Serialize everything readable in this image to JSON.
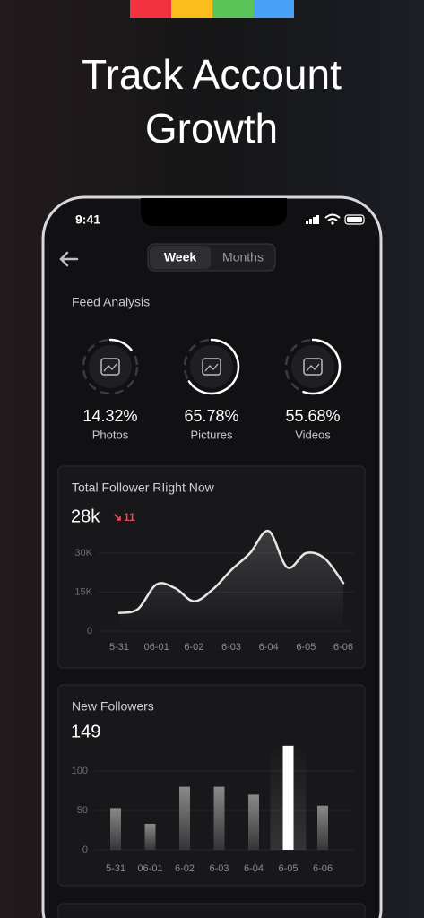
{
  "header": {
    "title_lines": [
      "Track Account",
      "Growth"
    ]
  },
  "status": {
    "time": "9:41"
  },
  "tabs": [
    "Week",
    "Months"
  ],
  "feed": {
    "title": "Feed Analysis",
    "labels": [
      "Photos",
      "Pictures",
      "Videos"
    ],
    "values": [
      14.32,
      65.78,
      55.68
    ],
    "value_labels": [
      "14.32%",
      "65.78%",
      "55.68%"
    ]
  },
  "chart_data": [
    {
      "type": "line",
      "title": "Total Follower RIight Now",
      "summary": "28k",
      "change": "11",
      "categories": [
        "5-31",
        null,
        "06-01",
        null,
        "6-02",
        null,
        "6-03",
        null,
        "6-04",
        null,
        "6-05",
        null,
        "6-06"
      ],
      "series": [
        {
          "color": "#e6e6e6",
          "values": [
            7000,
            8500,
            18000,
            16500,
            11500,
            16000,
            23500,
            30000,
            38500,
            24500,
            30000,
            28000,
            18500
          ]
        }
      ],
      "ylim": [
        0,
        40000
      ],
      "yticks": [
        0,
        {
          "value": 15000,
          "label": "15K"
        },
        {
          "value": 30000,
          "label": "30K"
        }
      ],
      "grid": true
    },
    {
      "type": "bar",
      "title": "New Followers",
      "summary": "149",
      "categories": [
        "5-31",
        "06-01",
        "6-02",
        "6-03",
        "6-04",
        "6-05",
        "6-06"
      ],
      "values": [
        53,
        33,
        80,
        80,
        70,
        132,
        56
      ],
      "colors": [
        "#8a8a8a",
        "#8a8a8a",
        "#8a8a8a",
        "#8a8a8a",
        "#8a8a8a",
        "#ffffff",
        "#8a8a8a"
      ],
      "ylim": [
        0,
        150
      ],
      "yticks": [
        0,
        50,
        100
      ],
      "grid": true
    }
  ]
}
